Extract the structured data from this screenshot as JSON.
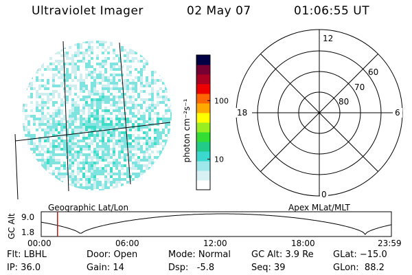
{
  "header": {
    "instrument": "Ultraviolet Imager",
    "date": "02 May 07",
    "time": "01:06:55 UT"
  },
  "image_panel": {
    "label": "Geographic Lat/Lon",
    "colors": [
      "#ffffff",
      "#cfeef0",
      "#7fe3e0",
      "#3fdcc8"
    ]
  },
  "colorbar": {
    "unit_label": "photon cm⁻²s⁻¹",
    "ticks": [
      {
        "label": "100",
        "value": 100
      },
      {
        "label": "10",
        "value": 10
      }
    ],
    "range": [
      3,
      600
    ],
    "colors": [
      "#ffffff",
      "#d8f2f4",
      "#9ee8ec",
      "#3bd8d0",
      "#22cc88",
      "#33dd33",
      "#99ee22",
      "#ffff00",
      "#ffaa00",
      "#ff6600",
      "#ee0000",
      "#aa0022",
      "#770033",
      "#000044"
    ]
  },
  "polar_plot": {
    "label": "Apex MLat/MLT",
    "mlt_labels": {
      "top": "12",
      "left": "18",
      "right": "6",
      "bottom": "0"
    },
    "lat_labels": [
      "60",
      "70",
      "80"
    ]
  },
  "orbit_plot": {
    "y_axis_label": "GC Alt",
    "y_ticks": [
      "9.0",
      "1.8"
    ],
    "x_ticks": [
      "00:00",
      "06:00",
      "12:00",
      "18:00",
      "23:59"
    ],
    "marker_time_hours": 1.115,
    "altitude_min": 1.8,
    "altitude_max": 9.0
  },
  "info": {
    "flt": "Flt: LBHL",
    "ip": "IP: 36.0",
    "door": "Door: Open",
    "gain": "Gain: 14",
    "mode": "Mode: Normal",
    "dsp": "Dsp:   -5.8",
    "gc_alt": "GC Alt: 3.9 Re",
    "seq": "Seq: 39",
    "glat": "GLat: −15.0",
    "glon": "GLon:  88.2"
  }
}
